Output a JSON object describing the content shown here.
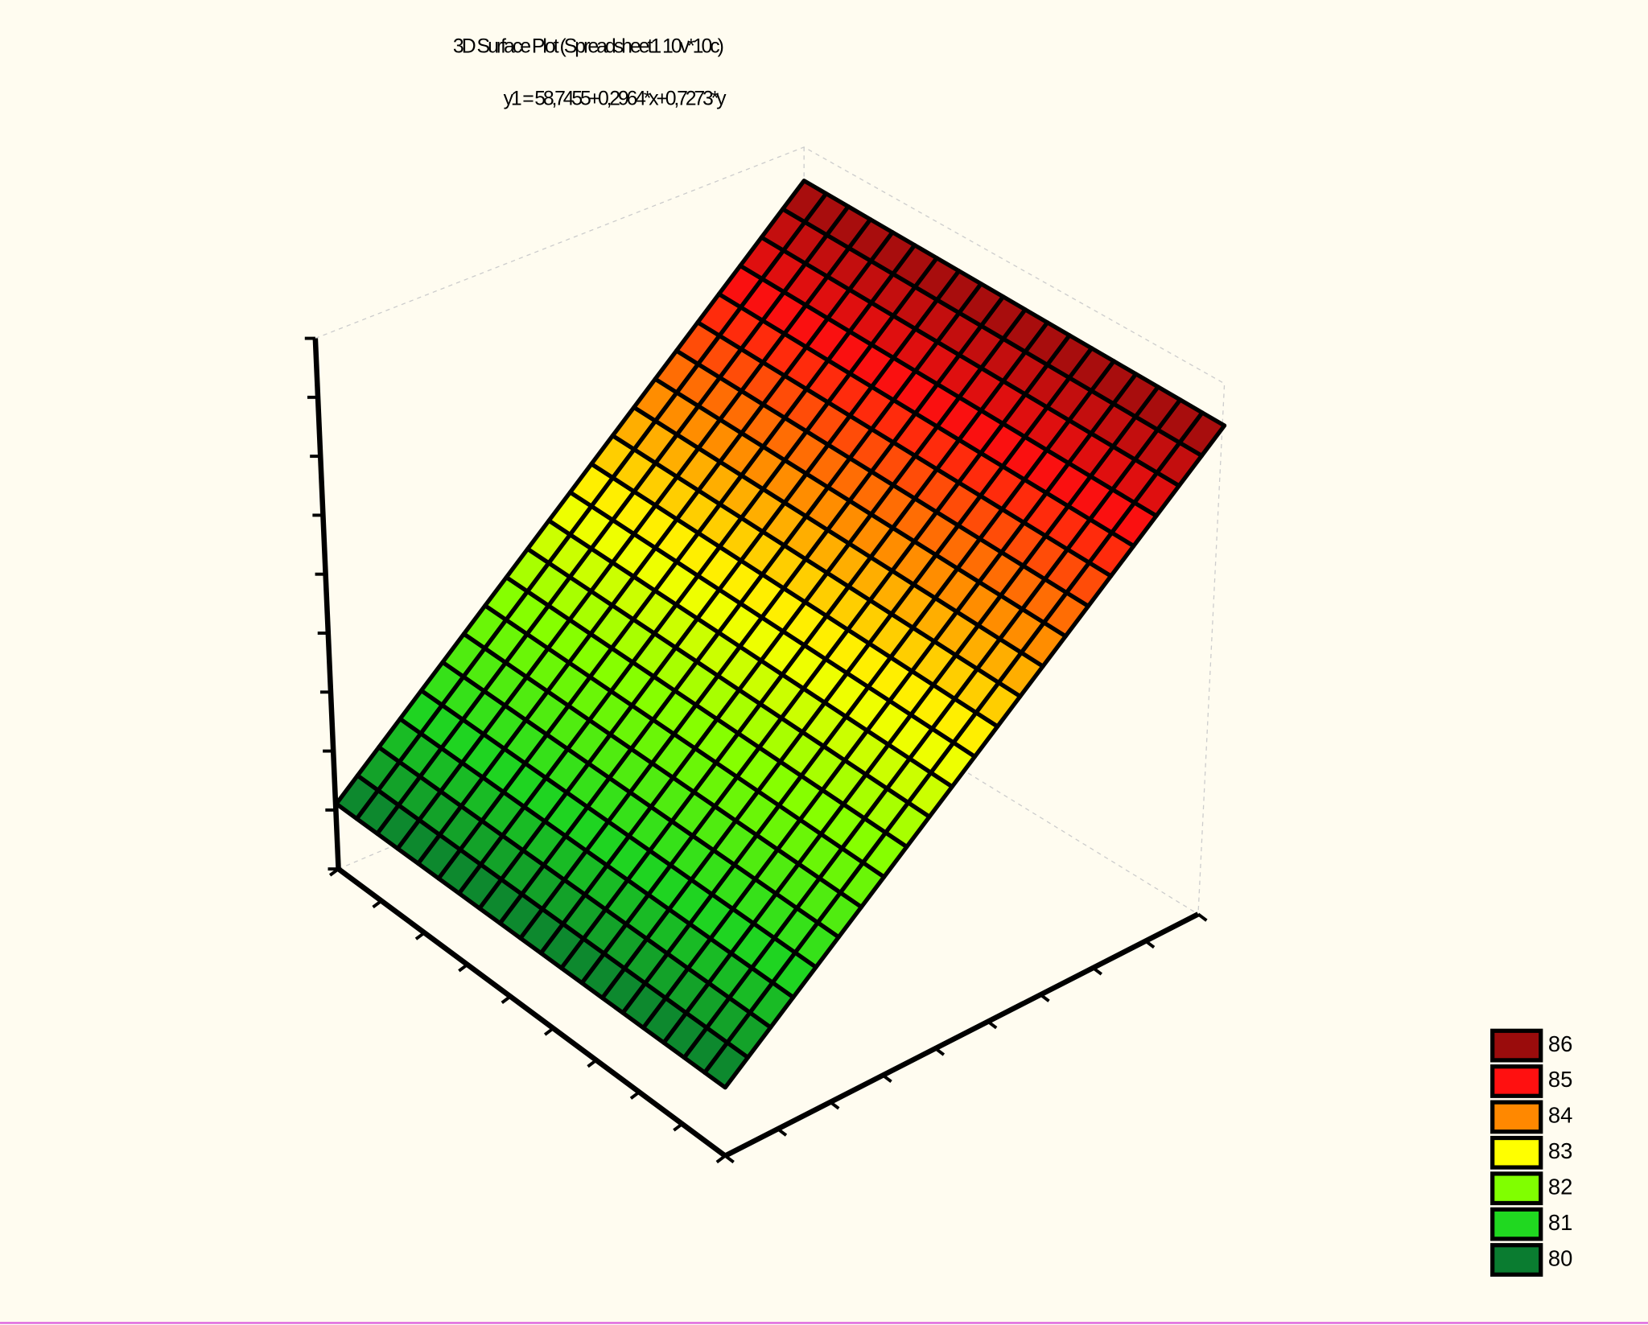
{
  "chart_data": {
    "type": "surface",
    "title": "3D Surface Plot (Spreadsheet1 10v*10c)",
    "subtitle": "y1 = 58,7455+0,2964*x+0,7273*y",
    "levels": [
      86,
      85,
      84,
      83,
      82,
      81,
      80
    ],
    "colors": [
      "#9a0c0c",
      "#ff1010",
      "#ff8800",
      "#ffff00",
      "#80ff00",
      "#20d820",
      "#0a7c30"
    ]
  }
}
